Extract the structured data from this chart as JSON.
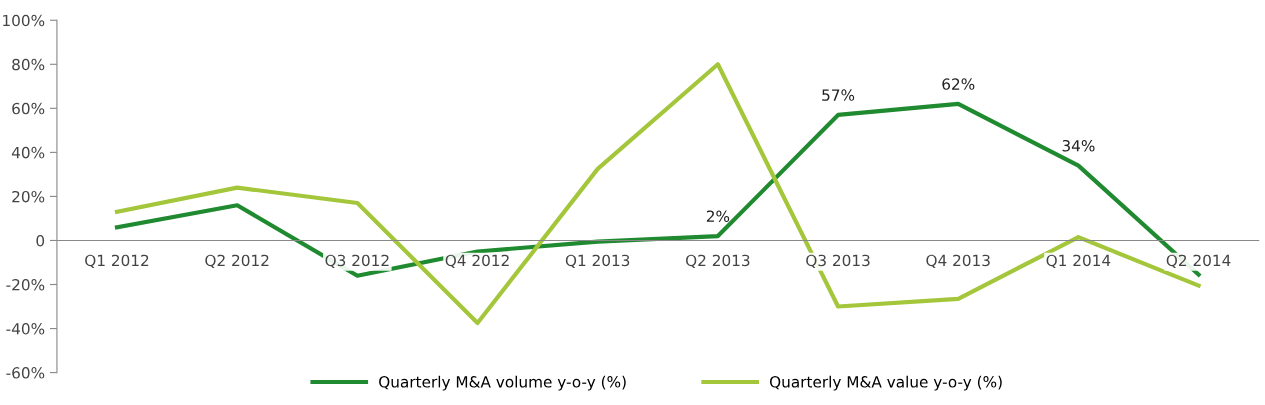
{
  "chart_data": {
    "type": "line",
    "categories": [
      "Q1 2012",
      "Q2 2012",
      "Q3 2012",
      "Q4 2012",
      "Q1 2013",
      "Q2 2013",
      "Q3 2013",
      "Q4 2013",
      "Q1 2014",
      "Q2 2014"
    ],
    "series": [
      {
        "name": "Quarterly M&A volume y-o-y (%)",
        "color": "#1f8a2f",
        "values": [
          6,
          16,
          -16,
          -5,
          -0.5,
          2,
          57,
          62,
          34,
          -15.5
        ],
        "value_labels": [
          null,
          null,
          null,
          null,
          null,
          "2%",
          "57%",
          "62%",
          "34%",
          null
        ]
      },
      {
        "name": "Quarterly M&A value y-o-y (%)",
        "color": "#a3c63a",
        "values": [
          13,
          24,
          17,
          -37.5,
          32.5,
          80,
          -30,
          -26.5,
          1.5,
          -20.5
        ]
      }
    ],
    "ylim": [
      -60,
      100
    ],
    "yticks": [
      {
        "value": -60,
        "label": "-60%"
      },
      {
        "value": -40,
        "label": "-40%"
      },
      {
        "value": -20,
        "label": "-20%"
      },
      {
        "value": 0,
        "label": "0"
      },
      {
        "value": 20,
        "label": "20%"
      },
      {
        "value": 40,
        "label": "40%"
      },
      {
        "value": 60,
        "label": "60%"
      },
      {
        "value": 80,
        "label": "80%"
      },
      {
        "value": 100,
        "label": "100%"
      }
    ],
    "grid": false,
    "legend": "bottom",
    "marker": "none",
    "line_style": "solid"
  }
}
